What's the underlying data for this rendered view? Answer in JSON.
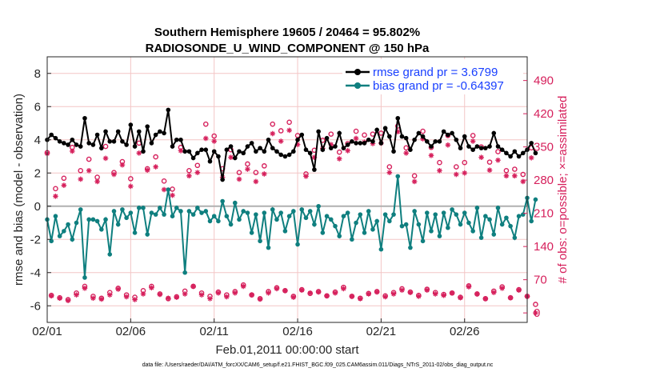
{
  "chart_data": {
    "type": "line",
    "title": "Southern Hemisphere 19605 / 20464 = 95.802%",
    "subtitle": "RADIOSONDE_U_WIND_COMPONENT @ 150 hPa",
    "xlabel": "Feb.01,2011 00:00:00 start",
    "ylabel_left": "rmse and bias (model - observation)",
    "ylabel_right": "# of obs: o=possible; ×=assimilated",
    "footer": "data file: /Users/raeder/DAI/ATM_forcXX/CAM6_setup/f.e21.FHIST_BGC.f09_025.CAM6assim.011/Diags_NTrS_2011-02/obs_diag_output.nc",
    "xlim": [
      0,
      28.75
    ],
    "ylim_left": [
      -7,
      9
    ],
    "ylim_right": [
      -20,
      540
    ],
    "x_ticks": [
      0,
      5,
      10,
      15,
      20,
      25
    ],
    "x_tick_labels": [
      "02/01",
      "02/06",
      "02/11",
      "02/16",
      "02/21",
      "02/26"
    ],
    "y_left_ticks": [
      -6,
      -4,
      -2,
      0,
      2,
      4,
      6,
      8
    ],
    "y_left_tick_labels": [
      "-6",
      "-4",
      "-2",
      "0",
      "2",
      "4",
      "6",
      "8"
    ],
    "y_right_ticks": [
      0,
      70,
      140,
      210,
      280,
      350,
      420,
      490
    ],
    "y_right_tick_labels": [
      "0",
      "70",
      "140",
      "210",
      "280",
      "350",
      "420",
      "490"
    ],
    "x_step_days": 0.25,
    "legend": [
      "rmse grand pr = 3.6799",
      "bias grand pr = -0.64397"
    ],
    "colors": {
      "rmse": "#000000",
      "bias": "#0f7f7f",
      "obs": "#d6205c",
      "zero_line": "#b0b0b0",
      "grid": "#f3c6c6",
      "legend_text": "#1a40ff"
    },
    "series": [
      {
        "name": "rmse",
        "axis": "left",
        "values": [
          4.0,
          4.3,
          4.1,
          3.9,
          3.8,
          3.7,
          4.0,
          3.7,
          3.6,
          5.3,
          3.8,
          3.7,
          4.3,
          3.5,
          4.5,
          3.9,
          3.9,
          4.5,
          3.9,
          3.7,
          4.9,
          3.6,
          4.5,
          3.3,
          4.8,
          3.8,
          4.3,
          4.5,
          4.4,
          5.8,
          3.6,
          4.0,
          4.0,
          3.3,
          3.3,
          2.9,
          3.2,
          3.4,
          3.4,
          2.7,
          3.3,
          3.0,
          1.6,
          3.4,
          3.6,
          2.9,
          3.3,
          3.2,
          3.6,
          3.8,
          3.3,
          3.5,
          3.3,
          4.0,
          3.5,
          3.3,
          3.1,
          3.0,
          3.1,
          3.3,
          4.0,
          4.3,
          3.4,
          3.2,
          2.2,
          4.5,
          3.4,
          4.1,
          3.5,
          3.6,
          4.4,
          3.5,
          3.7,
          3.9,
          3.8,
          3.8,
          3.8,
          4.0,
          3.9,
          4.6,
          3.8,
          4.7,
          4.2,
          3.3,
          5.3,
          4.2,
          4.1,
          3.4,
          4.0,
          4.4,
          4.2,
          3.9,
          3.6,
          3.9,
          3.9,
          4.5,
          4.3,
          4.4,
          4.0,
          3.5,
          4.2,
          3.6,
          3.4,
          3.6,
          3.5,
          3.5,
          3.6,
          4.4,
          3.6,
          3.4,
          3.2,
          3.0,
          3.3,
          3.0,
          3.2,
          3.4,
          3.8,
          3.2
        ]
      },
      {
        "name": "bias",
        "axis": "left",
        "values": [
          -0.8,
          -2.1,
          -0.6,
          -1.8,
          -1.5,
          -1.1,
          -2.0,
          -1.0,
          -0.2,
          -4.3,
          -0.8,
          -0.8,
          -0.9,
          -1.4,
          -0.8,
          -2.9,
          -0.3,
          -1.1,
          -0.2,
          -0.7,
          -0.4,
          -1.6,
          -0.1,
          -0.1,
          -1.7,
          -0.4,
          -0.5,
          -0.1,
          -0.5,
          1.0,
          -0.6,
          -0.1,
          -0.3,
          -4.0,
          -0.3,
          -0.5,
          -0.1,
          -0.4,
          -0.3,
          -0.9,
          -0.6,
          -0.9,
          0.3,
          -0.6,
          -1.1,
          0.2,
          -0.8,
          -0.3,
          -0.4,
          -1.6,
          -0.5,
          -2.1,
          -0.4,
          -2.5,
          -0.2,
          -0.8,
          -0.4,
          -1.5,
          -0.6,
          -0.3,
          -2.3,
          -0.2,
          -0.7,
          -0.3,
          -1.1,
          0.0,
          -1.6,
          -0.6,
          -0.8,
          -1.2,
          -1.8,
          -0.6,
          -0.4,
          -2.0,
          -1.0,
          -0.5,
          -1.6,
          -0.3,
          -1.4,
          -0.9,
          -2.6,
          -0.5,
          -0.9,
          -0.5,
          1.8,
          -1.2,
          -1.1,
          -2.5,
          -0.3,
          -1.1,
          -2.1,
          -0.4,
          -1.5,
          -0.5,
          -1.8,
          -0.4,
          -1.3,
          -0.2,
          -0.5,
          -1.1,
          -0.4,
          -1.0,
          -1.5,
          -0.1,
          -1.9,
          -0.6,
          -0.8,
          -1.7,
          -0.1,
          -1.1,
          -0.7,
          -1.2,
          -1.9,
          -0.6,
          -0.5,
          0.5,
          -0.9,
          0.4
        ]
      },
      {
        "name": "obs_possible",
        "axis": "right",
        "values": [
          338,
          37,
          262,
          32,
          284,
          28,
          349,
          42,
          300,
          56,
          324,
          35,
          286,
          31,
          351,
          43,
          296,
          52,
          319,
          38,
          283,
          33,
          358,
          47,
          304,
          56,
          329,
          40,
          278,
          30,
          261,
          34,
          349,
          46,
          300,
          56,
          311,
          42,
          398,
          35,
          373,
          44,
          304,
          38,
          344,
          45,
          296,
          59,
          314,
          38,
          296,
          30,
          310,
          45,
          398,
          53,
          384,
          47,
          402,
          35,
          374,
          49,
          293,
          41,
          343,
          45,
          364,
          36,
          377,
          44,
          339,
          54,
          357,
          35,
          383,
          31,
          375,
          41,
          377,
          45,
          379,
          36,
          308,
          43,
          394,
          51,
          348,
          44,
          289,
          37,
          383,
          50,
          349,
          43,
          317,
          39,
          374,
          42,
          308,
          33,
          317,
          57,
          374,
          40,
          350,
          30,
          318,
          46,
          340,
          55,
          300,
          32,
          303,
          49,
          292,
          35,
          348,
          18
        ]
      },
      {
        "name": "obs_assimilated",
        "axis": "right",
        "values": [
          336,
          36,
          246,
          31,
          269,
          26,
          341,
          38,
          282,
          52,
          300,
          31,
          277,
          29,
          326,
          38,
          292,
          50,
          312,
          34,
          267,
          28,
          337,
          40,
          301,
          53,
          308,
          39,
          260,
          31,
          248,
          33,
          342,
          40,
          289,
          56,
          296,
          38,
          368,
          30,
          362,
          42,
          286,
          34,
          328,
          42,
          282,
          56,
          303,
          38,
          277,
          29,
          293,
          42,
          378,
          51,
          362,
          47,
          385,
          33,
          355,
          48,
          288,
          42,
          328,
          44,
          347,
          36,
          355,
          42,
          325,
          51,
          342,
          35,
          368,
          30,
          360,
          40,
          357,
          44,
          358,
          34,
          296,
          40,
          382,
          48,
          337,
          43,
          277,
          35,
          367,
          48,
          332,
          40,
          300,
          37,
          354,
          42,
          292,
          32,
          295,
          55,
          362,
          40,
          328,
          30,
          301,
          43,
          322,
          52,
          289,
          32,
          289,
          48,
          277,
          35,
          327,
          0
        ]
      }
    ]
  }
}
